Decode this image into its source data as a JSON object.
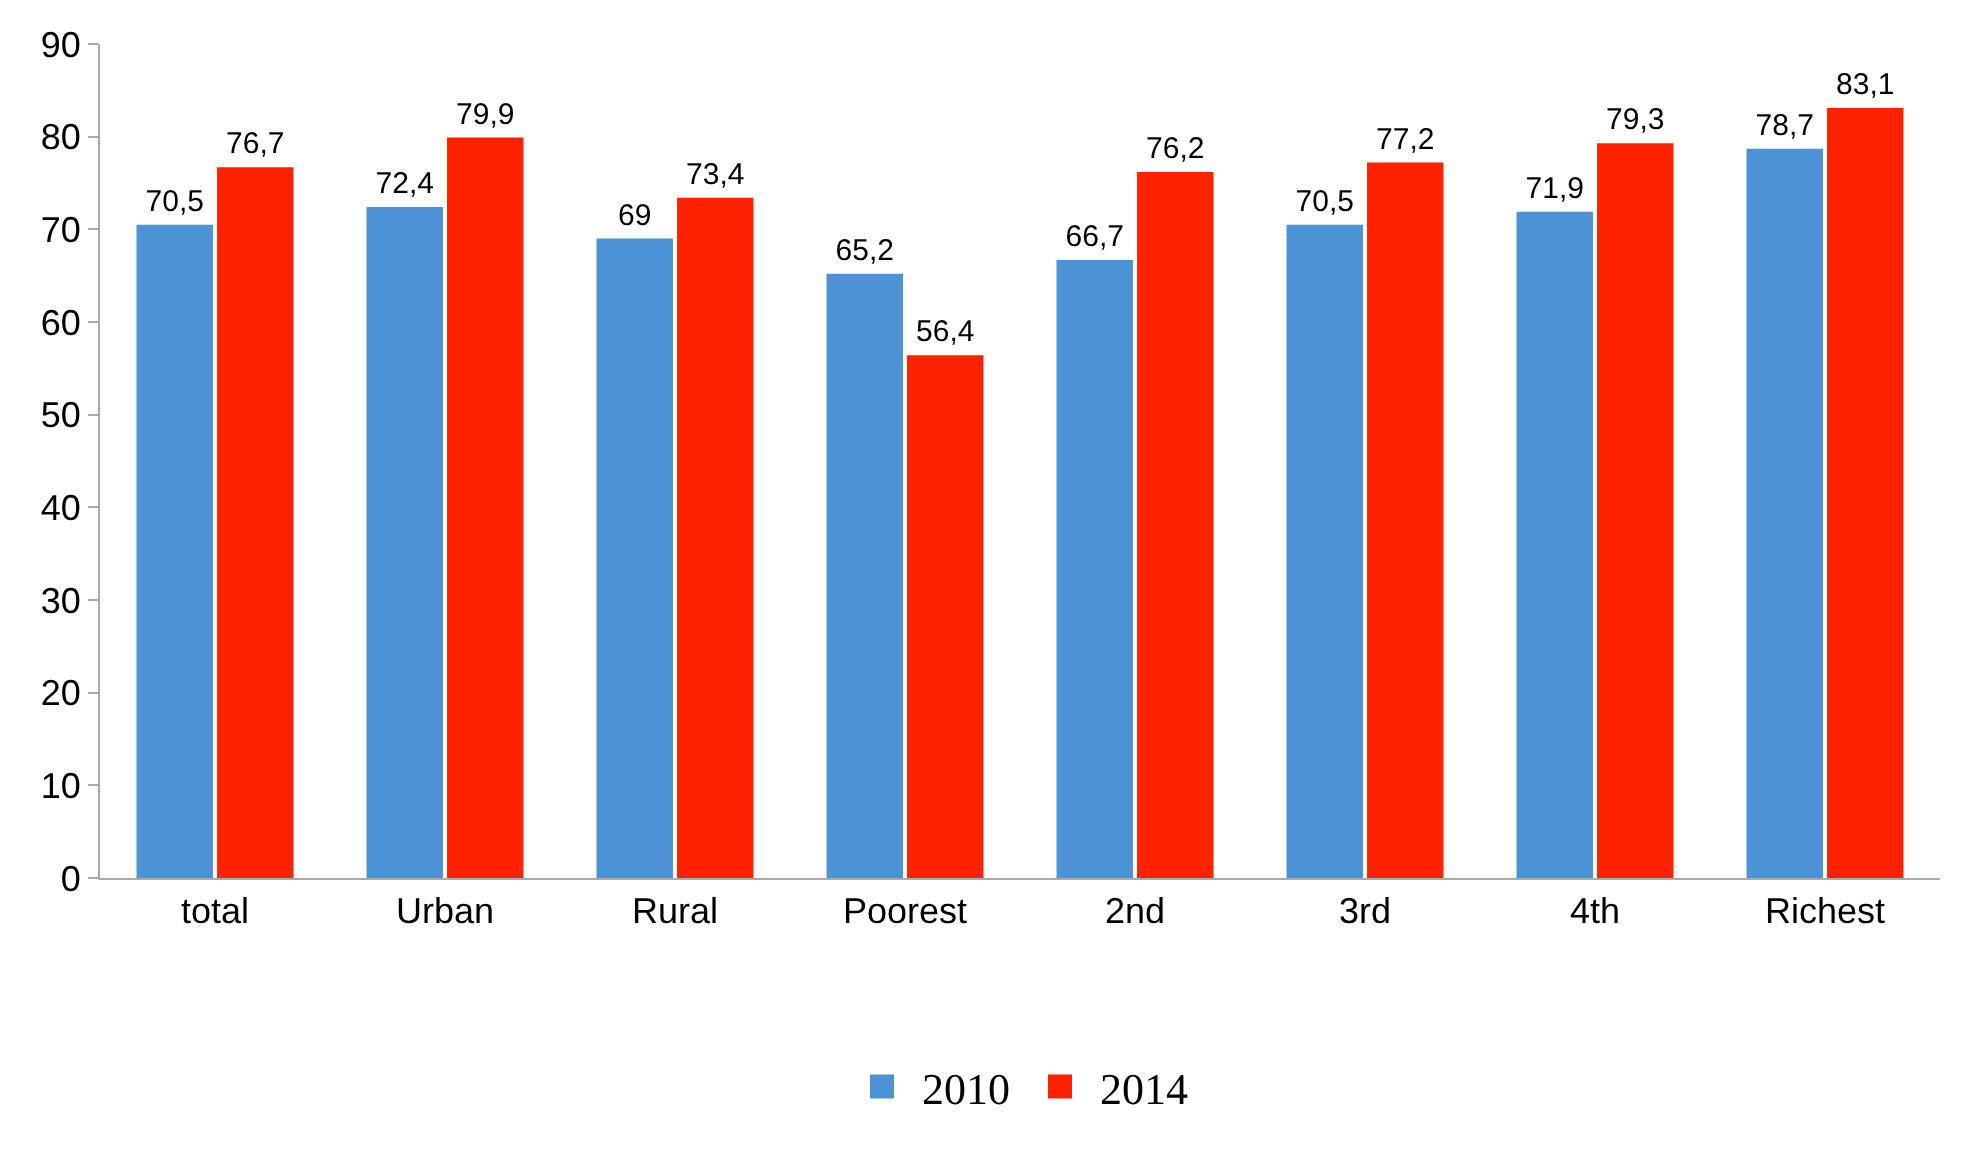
{
  "chart_data": {
    "type": "bar",
    "categories": [
      "total",
      "Urban",
      "Rural",
      "Poorest",
      "2nd",
      "3rd",
      "4th",
      "Richest"
    ],
    "series": [
      {
        "name": "2010",
        "color": "#4e92d6",
        "values": [
          70.5,
          72.4,
          69,
          65.2,
          66.7,
          70.5,
          71.9,
          78.7
        ],
        "value_labels": [
          "70,5",
          "72,4",
          "69",
          "65,2",
          "66,7",
          "70,5",
          "71,9",
          "78,7"
        ]
      },
      {
        "name": "2014",
        "color": "#ff2200",
        "values": [
          76.7,
          79.9,
          73.4,
          56.4,
          76.2,
          77.2,
          79.3,
          83.1
        ],
        "value_labels": [
          "76,7",
          "79,9",
          "73,4",
          "56,4",
          "76,2",
          "77,2",
          "79,3",
          "83,1"
        ]
      }
    ],
    "ylim": [
      0,
      90
    ],
    "yticks": [
      0,
      10,
      20,
      30,
      40,
      50,
      60,
      70,
      80,
      90
    ],
    "grid": false,
    "legend": "bottom"
  }
}
